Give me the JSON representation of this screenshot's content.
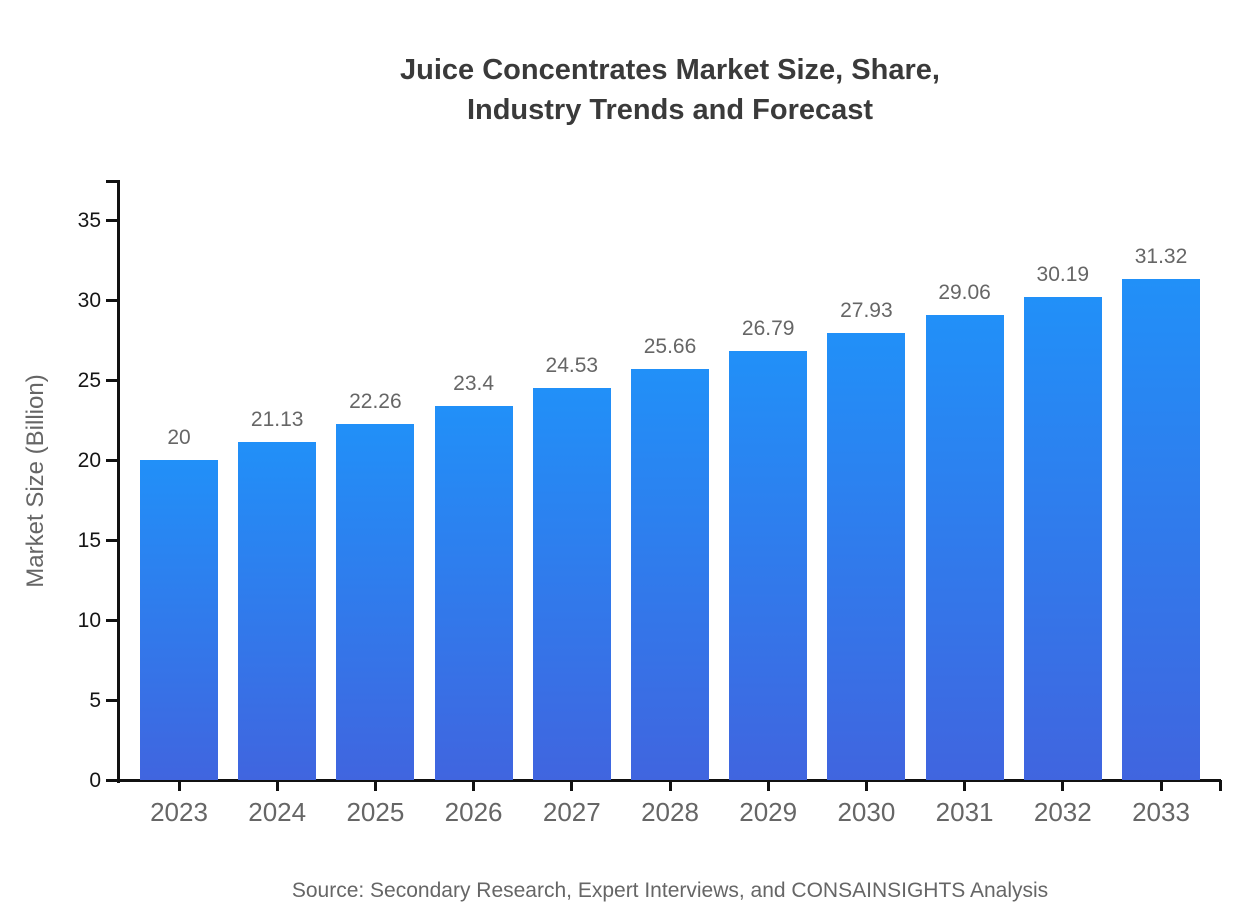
{
  "chart_data": {
    "type": "bar",
    "title_lines": [
      "Juice Concentrates Market Size, Share,",
      "Industry Trends and Forecast"
    ],
    "title": "Juice Concentrates Market Size, Share, Industry Trends and Forecast",
    "categories": [
      "2023",
      "2024",
      "2025",
      "2026",
      "2027",
      "2028",
      "2029",
      "2030",
      "2031",
      "2032",
      "2033"
    ],
    "values": [
      20,
      21.13,
      22.26,
      23.4,
      24.53,
      25.66,
      26.79,
      27.93,
      29.06,
      30.19,
      31.32
    ],
    "value_labels": [
      "20",
      "21.13",
      "22.26",
      "23.4",
      "24.53",
      "25.66",
      "26.79",
      "27.93",
      "29.06",
      "30.19",
      "31.32"
    ],
    "xlabel": "",
    "ylabel": "Market Size (Billion)",
    "yticks": [
      0,
      5,
      10,
      15,
      20,
      25,
      30,
      35
    ],
    "ylim": [
      0,
      37.6
    ],
    "grid": false,
    "legend_position": "none"
  },
  "source_note": "Source: Secondary Research, Expert Interviews, and CONSAINSIGHTS Analysis",
  "colors": {
    "bar_gradient_top": "#2190f8",
    "bar_gradient_bottom": "#4065df",
    "axis": "#111111",
    "title_text": "#3a3a3a",
    "muted_text": "#666666",
    "background": "#ffffff"
  }
}
